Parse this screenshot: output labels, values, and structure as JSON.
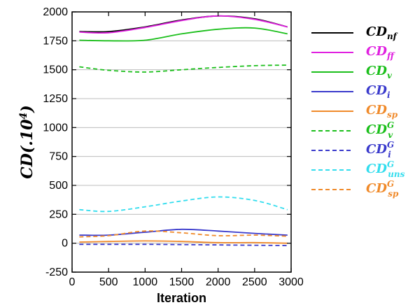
{
  "chart_data": {
    "type": "line",
    "title": "",
    "xlabel": "Iteration",
    "ylabel": "CD(.10⁴)",
    "ylabel_parts": {
      "main": "CD",
      "open": "(",
      "dot": ".10",
      "exp": "4",
      "close": ")"
    },
    "xlim": [
      0,
      3000
    ],
    "ylim": [
      -250,
      2000
    ],
    "xticks": [
      0,
      500,
      1000,
      1500,
      2000,
      2500,
      3000
    ],
    "yticks": [
      -250,
      0,
      250,
      500,
      750,
      1000,
      1250,
      1500,
      1750,
      2000
    ],
    "grid": "horizontal",
    "legend_position": "right",
    "x": [
      100,
      500,
      1000,
      1500,
      2000,
      2500,
      2950
    ],
    "series": [
      {
        "name": "CD_nf",
        "base": "CD",
        "sub": "nf",
        "sup": "",
        "color": "#000000",
        "dash": "solid",
        "values": [
          1830,
          1830,
          1870,
          1930,
          1965,
          1940,
          1870
        ]
      },
      {
        "name": "CD_ff",
        "base": "CD",
        "sub": "ff",
        "sup": "",
        "color": "#e020e0",
        "dash": "solid",
        "values": [
          1825,
          1820,
          1865,
          1925,
          1965,
          1935,
          1870
        ]
      },
      {
        "name": "CD_v",
        "base": "CD",
        "sub": "v",
        "sup": "",
        "color": "#1bbf1b",
        "dash": "solid",
        "values": [
          1755,
          1750,
          1755,
          1810,
          1850,
          1860,
          1810
        ]
      },
      {
        "name": "CD_i",
        "base": "CD",
        "sub": "i",
        "sup": "",
        "color": "#3a3acc",
        "dash": "solid",
        "values": [
          70,
          70,
          95,
          120,
          105,
          85,
          70
        ]
      },
      {
        "name": "CD_sp",
        "base": "CD",
        "sub": "sp",
        "sup": "",
        "color": "#f08a2a",
        "dash": "solid",
        "values": [
          10,
          15,
          20,
          15,
          5,
          5,
          0
        ]
      },
      {
        "name": "CD_v^G",
        "base": "CD",
        "sub": "v",
        "sup": "G",
        "color": "#1bbf1b",
        "dash": "dashed",
        "values": [
          1525,
          1495,
          1480,
          1500,
          1520,
          1535,
          1540
        ]
      },
      {
        "name": "CD_i^G",
        "base": "CD",
        "sub": "i",
        "sup": "G",
        "color": "#3a3acc",
        "dash": "dashed",
        "values": [
          -10,
          -10,
          -10,
          -12,
          -15,
          -18,
          -20
        ]
      },
      {
        "name": "CD_uns^G",
        "base": "CD",
        "sub": "uns",
        "sup": "G",
        "color": "#33ddee",
        "dash": "dashed",
        "values": [
          290,
          275,
          315,
          365,
          400,
          370,
          290
        ]
      },
      {
        "name": "CD_sp^G",
        "base": "CD",
        "sub": "sp",
        "sup": "G",
        "color": "#f08a2a",
        "dash": "dashed",
        "values": [
          55,
          65,
          105,
          90,
          65,
          70,
          60
        ]
      }
    ]
  }
}
